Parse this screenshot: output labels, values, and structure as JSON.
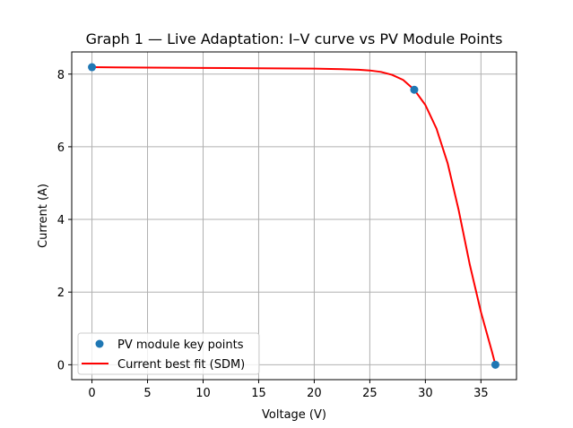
{
  "chart_data": {
    "type": "line",
    "title": "Graph 1 — Live Adaptation: I–V curve vs PV Module Points",
    "xlabel": "Voltage (V)",
    "ylabel": "Current (A)",
    "xlim": [
      -1.82,
      38.2
    ],
    "ylim": [
      -0.41,
      8.61
    ],
    "xticks": [
      0,
      5,
      10,
      15,
      20,
      25,
      30,
      35
    ],
    "yticks": [
      0,
      2,
      4,
      6,
      8
    ],
    "grid": true,
    "legend_position": "lower-left",
    "series": [
      {
        "name": "PV module key points",
        "kind": "scatter",
        "color": "#1f77b4",
        "marker": "circle",
        "x": [
          0,
          29.0,
          36.3
        ],
        "y": [
          8.19,
          7.57,
          0
        ]
      },
      {
        "name": "Current best fit (SDM)",
        "kind": "line",
        "color": "#ff0000",
        "x": [
          0,
          5,
          10,
          15,
          20,
          22,
          24,
          25,
          26,
          27,
          28,
          29,
          30,
          31,
          32,
          33,
          34,
          35,
          36,
          36.3
        ],
        "y": [
          8.19,
          8.18,
          8.17,
          8.16,
          8.15,
          8.14,
          8.12,
          8.1,
          8.06,
          7.98,
          7.84,
          7.57,
          7.15,
          6.5,
          5.55,
          4.25,
          2.75,
          1.45,
          0.35,
          0
        ]
      }
    ]
  }
}
